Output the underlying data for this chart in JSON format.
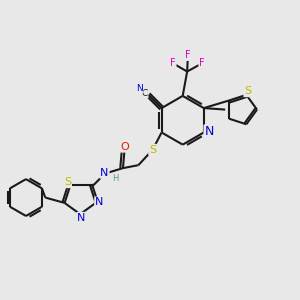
{
  "bg": "#e8e8e8",
  "bond_color": "#1a1a1a",
  "bw": 1.5,
  "atom_colors": {
    "N": "#0000dd",
    "S": "#bbbb00",
    "O": "#dd2200",
    "F": "#dd00bb",
    "H": "#559999",
    "C": "#1a1a1a"
  },
  "fs": 8.0
}
